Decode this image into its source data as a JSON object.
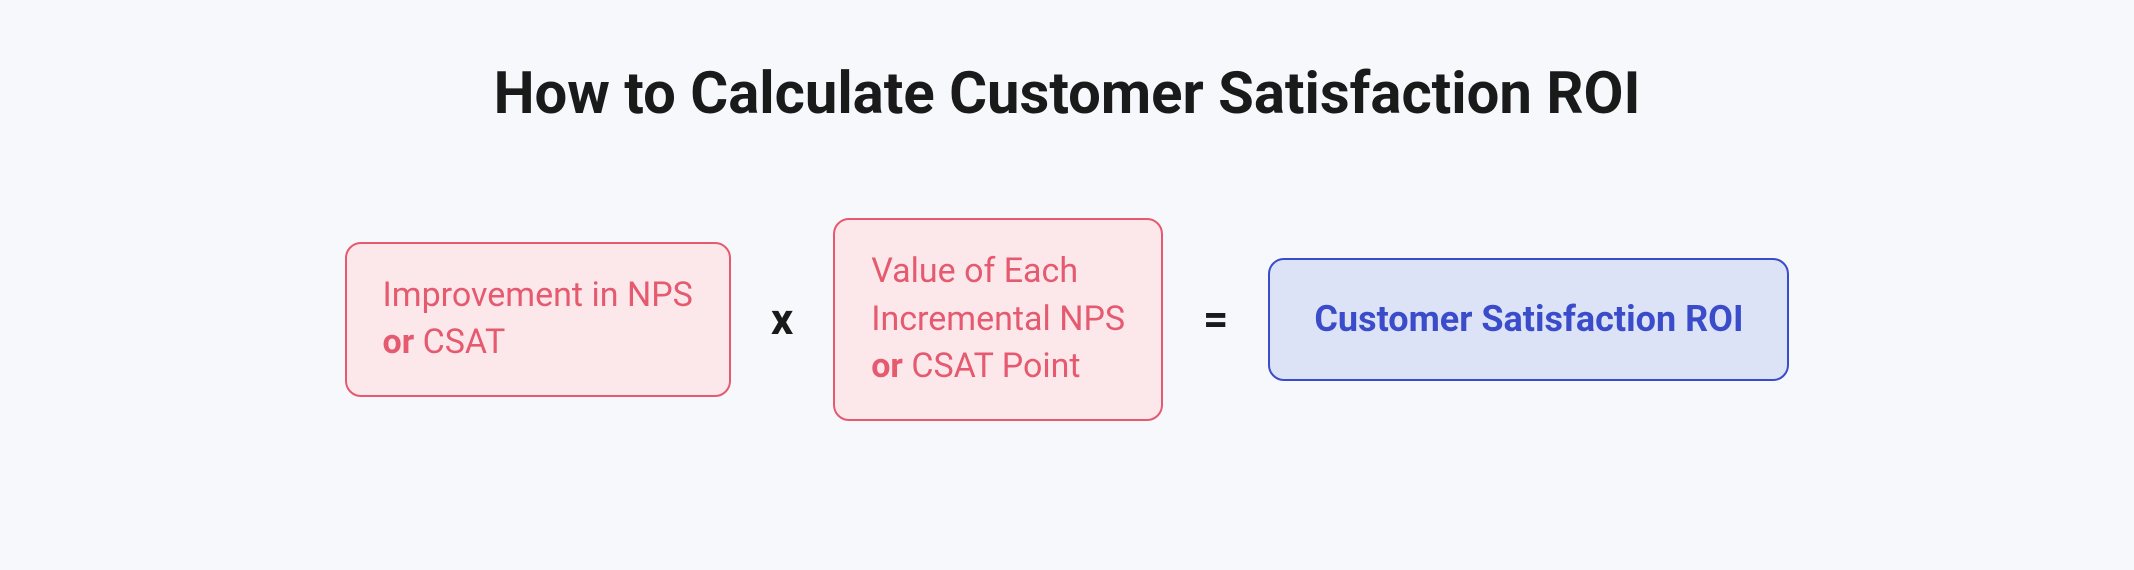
{
  "background_color": "#f6f8fc",
  "title": {
    "text": "How to Calculate Customer Satisfaction ROI",
    "color": "#1a1a1a"
  },
  "operators": {
    "multiply": "x",
    "equals": "=",
    "color": "#1a1a1a"
  },
  "boxes": {
    "improvement": {
      "line1": "Improvement in NPS",
      "bold_prefix": "or ",
      "bold_rest": "CSAT",
      "border_color": "#e55a6f",
      "background_color": "#fce8eb",
      "text_color": "#e55a6f"
    },
    "value": {
      "line1": "Value of Each",
      "line2": "Incremental NPS",
      "bold_prefix": "or ",
      "bold_rest": "CSAT Point",
      "border_color": "#e55a6f",
      "background_color": "#fce8eb",
      "text_color": "#e55a6f"
    },
    "result": {
      "text": "Customer Satisfaction ROI",
      "border_color": "#3b4cca",
      "background_color": "#dde3f7",
      "text_color": "#3b4cca"
    }
  }
}
